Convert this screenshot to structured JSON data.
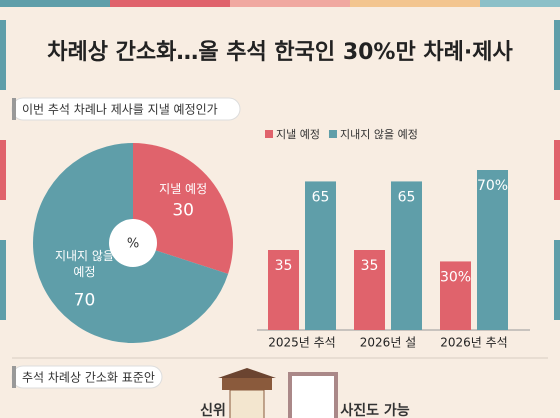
{
  "header": {
    "title": "차례상 간소화…올 추석 한국인 30%만 차례·제사"
  },
  "chart_data": [
    {
      "type": "pie",
      "title": "이번 추석 차례나 제사를 지낼 예정인가",
      "center_label": "%",
      "categories": [
        "지낼 예정",
        "지내지 않을 예정"
      ],
      "values": [
        30,
        70
      ],
      "colors": [
        "#e0636c",
        "#5f9ea9"
      ]
    },
    {
      "type": "bar",
      "categories": [
        "2025년 추석",
        "2026년 설",
        "2026년 추석"
      ],
      "legend": "top-left",
      "series": [
        {
          "name": "지낼 예정",
          "color": "#e0636c",
          "values": [
            35,
            35,
            30
          ],
          "value_labels": [
            "35",
            "35",
            "30%"
          ]
        },
        {
          "name": "지내지 않을 예정",
          "color": "#5f9ea9",
          "values": [
            65,
            65,
            70
          ],
          "value_labels": [
            "65",
            "65",
            "70%"
          ]
        }
      ]
    }
  ],
  "footer": {
    "section_title": "추석 차례상 간소화 표준안",
    "items": [
      "신위",
      "사진도 가능"
    ]
  }
}
